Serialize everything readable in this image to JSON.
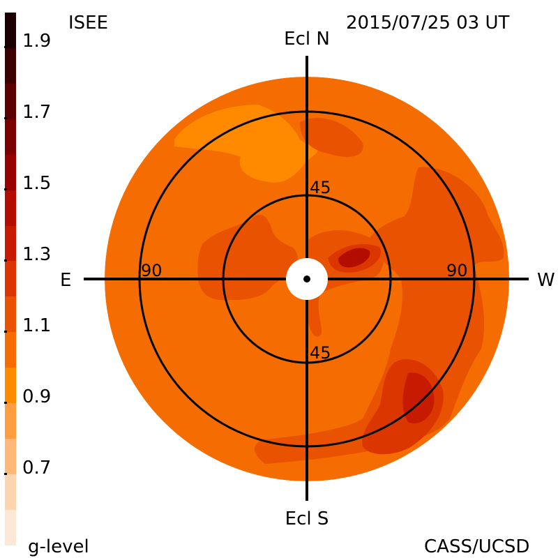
{
  "header": {
    "source_label": "ISEE",
    "timestamp": "2015/07/25 03 UT"
  },
  "footer": {
    "scale_label": "g-level",
    "credit": "CASS/UCSD"
  },
  "orientation_labels": {
    "top": "Ecl N",
    "bottom": "Ecl S",
    "left": "E",
    "right": "W"
  },
  "elongation_labels": {
    "inner_top": "45",
    "inner_bottom": "45",
    "outer_left": "90",
    "outer_right": "90"
  },
  "colorbar": {
    "title": "g-level",
    "tick_labels": [
      "1.9",
      "1.7",
      "1.5",
      "1.3",
      "1.1",
      "0.9",
      "0.7"
    ],
    "colors_top_to_bottom": [
      "#1a0000",
      "#3d0000",
      "#5c0000",
      "#7a0000",
      "#990000",
      "#b30c00",
      "#c81a00",
      "#db3600",
      "#e85200",
      "#f56c00",
      "#ff8a00",
      "#ff9e40",
      "#ffb878",
      "#ffd5b0",
      "#fde8d8"
    ]
  },
  "map_colors": {
    "base": "#f56c00",
    "light": "#ff8a00",
    "medium": "#e85200",
    "dark": "#db3600",
    "darker": "#c81a00",
    "darkest": "#b30c00"
  }
}
